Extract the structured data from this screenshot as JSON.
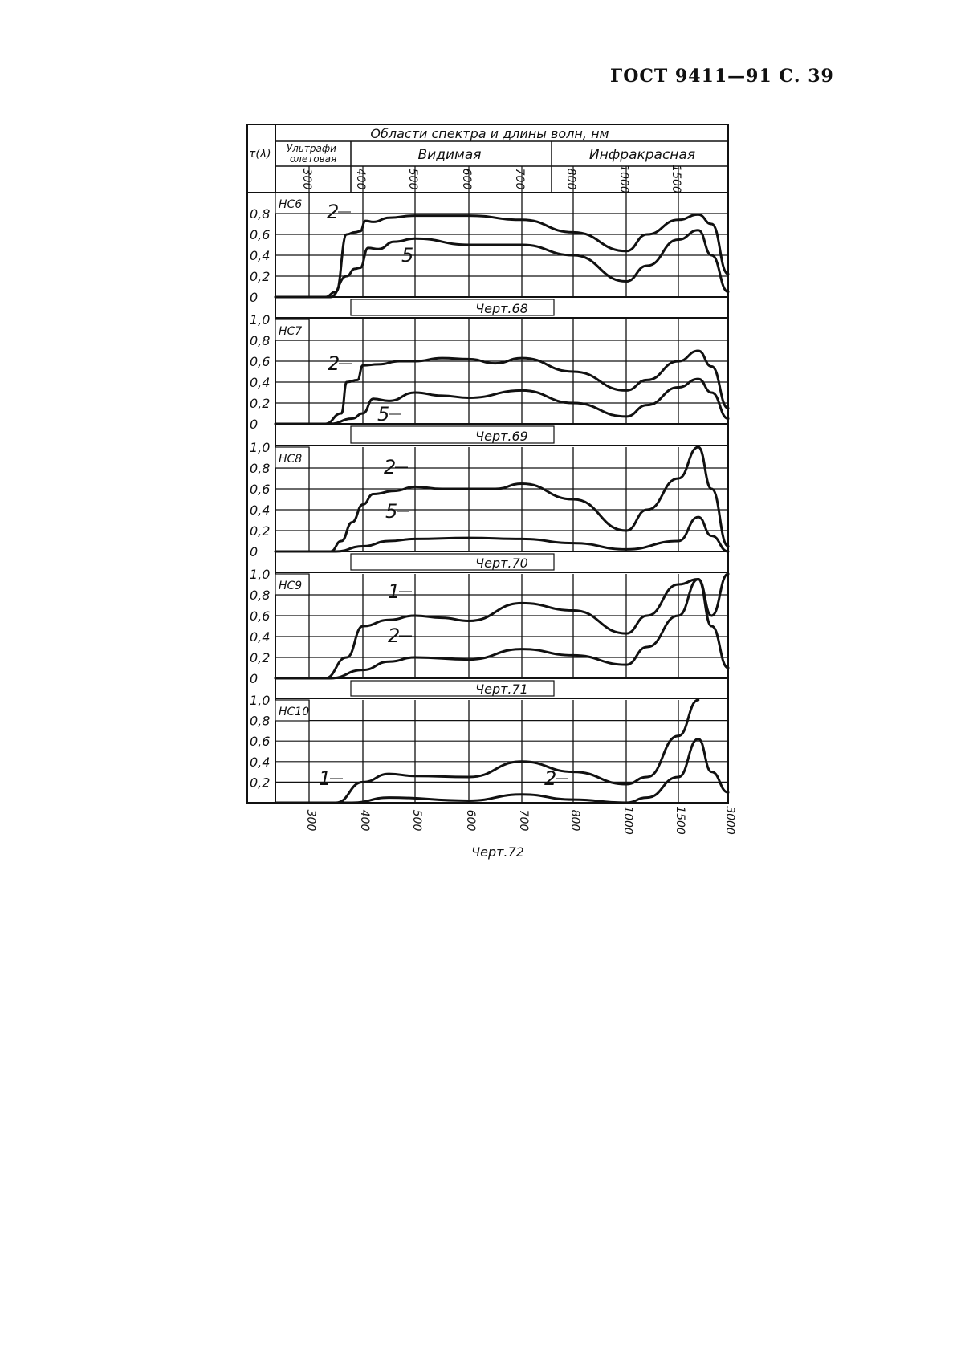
{
  "page_header": "ГОСТ 9411—91 С. 39",
  "colors": {
    "ink": "#111111",
    "paper": "#ffffff"
  },
  "chart_data": {
    "type": "line",
    "header": {
      "title": "Области спектра и длины волн, нм",
      "y_symbol": "τ(λ)",
      "regions": [
        "Ультрафио-летовая",
        "Видимая",
        "Инфракрасная"
      ],
      "region_uv_line1": "Ультрафи-",
      "region_uv_line2": "олетовая"
    },
    "x_ticks": [
      "300",
      "400",
      "500",
      "600",
      "700",
      "800",
      "1000",
      "1500",
      "3000"
    ],
    "x_scale": "non-uniform (equal spacing per tick)",
    "grid": true,
    "y_range": [
      0,
      1.0
    ],
    "panels": [
      {
        "glass": "НС6",
        "caption": "Черт.68",
        "y_ticks": [
          "0",
          "0,2",
          "0,4",
          "0,6",
          "0,8"
        ],
        "series": [
          {
            "name": "2",
            "points": [
              [
                330,
                0
              ],
              [
                350,
                0.05
              ],
              [
                370,
                0.6
              ],
              [
                385,
                0.62
              ],
              [
                395,
                0.63
              ],
              [
                405,
                0.73
              ],
              [
                420,
                0.72
              ],
              [
                450,
                0.76
              ],
              [
                500,
                0.78
              ],
              [
                600,
                0.78
              ],
              [
                700,
                0.74
              ],
              [
                800,
                0.62
              ],
              [
                1000,
                0.44
              ],
              [
                1200,
                0.6
              ],
              [
                1500,
                0.74
              ],
              [
                2100,
                0.79
              ],
              [
                2500,
                0.7
              ],
              [
                3000,
                0.22
              ]
            ]
          },
          {
            "name": "5",
            "points": [
              [
                340,
                0
              ],
              [
                370,
                0.2
              ],
              [
                385,
                0.27
              ],
              [
                395,
                0.28
              ],
              [
                410,
                0.47
              ],
              [
                430,
                0.46
              ],
              [
                460,
                0.53
              ],
              [
                500,
                0.56
              ],
              [
                600,
                0.5
              ],
              [
                700,
                0.5
              ],
              [
                800,
                0.4
              ],
              [
                1000,
                0.15
              ],
              [
                1200,
                0.3
              ],
              [
                1500,
                0.55
              ],
              [
                2100,
                0.64
              ],
              [
                2500,
                0.4
              ],
              [
                3000,
                0.05
              ]
            ]
          }
        ]
      },
      {
        "glass": "НС7",
        "caption": "Черт.69",
        "y_ticks": [
          "0",
          "0,2",
          "0,4",
          "0,6",
          "0,8",
          "1,0"
        ],
        "series": [
          {
            "name": "2",
            "points": [
              [
                330,
                0
              ],
              [
                360,
                0.1
              ],
              [
                370,
                0.4
              ],
              [
                390,
                0.42
              ],
              [
                400,
                0.56
              ],
              [
                430,
                0.57
              ],
              [
                470,
                0.6
              ],
              [
                500,
                0.6
              ],
              [
                550,
                0.63
              ],
              [
                600,
                0.62
              ],
              [
                650,
                0.58
              ],
              [
                700,
                0.63
              ],
              [
                800,
                0.5
              ],
              [
                1000,
                0.32
              ],
              [
                1200,
                0.42
              ],
              [
                1500,
                0.6
              ],
              [
                2100,
                0.7
              ],
              [
                2500,
                0.55
              ],
              [
                3000,
                0.15
              ]
            ]
          },
          {
            "name": "5",
            "points": [
              [
                340,
                0
              ],
              [
                380,
                0.05
              ],
              [
                400,
                0.1
              ],
              [
                420,
                0.24
              ],
              [
                450,
                0.22
              ],
              [
                500,
                0.3
              ],
              [
                550,
                0.27
              ],
              [
                600,
                0.25
              ],
              [
                700,
                0.32
              ],
              [
                800,
                0.2
              ],
              [
                1000,
                0.07
              ],
              [
                1200,
                0.18
              ],
              [
                1500,
                0.35
              ],
              [
                2100,
                0.43
              ],
              [
                2500,
                0.3
              ],
              [
                3000,
                0.05
              ]
            ]
          }
        ]
      },
      {
        "glass": "НС8",
        "caption": "Черт.70",
        "y_ticks": [
          "0",
          "0,2",
          "0,4",
          "0,6",
          "0,8",
          "1,0"
        ],
        "series": [
          {
            "name": "2",
            "points": [
              [
                340,
                0
              ],
              [
                360,
                0.1
              ],
              [
                380,
                0.28
              ],
              [
                400,
                0.45
              ],
              [
                420,
                0.55
              ],
              [
                460,
                0.58
              ],
              [
                500,
                0.62
              ],
              [
                550,
                0.6
              ],
              [
                650,
                0.6
              ],
              [
                700,
                0.65
              ],
              [
                800,
                0.5
              ],
              [
                1000,
                0.2
              ],
              [
                1200,
                0.4
              ],
              [
                1500,
                0.7
              ],
              [
                2100,
                1.0
              ],
              [
                2500,
                0.6
              ],
              [
                3000,
                0.05
              ]
            ]
          },
          {
            "name": "5",
            "points": [
              [
                350,
                0
              ],
              [
                400,
                0.05
              ],
              [
                450,
                0.1
              ],
              [
                500,
                0.12
              ],
              [
                600,
                0.13
              ],
              [
                700,
                0.12
              ],
              [
                800,
                0.08
              ],
              [
                1000,
                0.02
              ],
              [
                1500,
                0.1
              ],
              [
                2100,
                0.33
              ],
              [
                2500,
                0.15
              ],
              [
                3000,
                0
              ]
            ]
          }
        ]
      },
      {
        "glass": "НС9",
        "caption": "Черт.71",
        "y_ticks": [
          "0",
          "0,2",
          "0,4",
          "0,6",
          "0,8",
          "1,0"
        ],
        "series": [
          {
            "name": "1",
            "points": [
              [
                330,
                0
              ],
              [
                370,
                0.2
              ],
              [
                400,
                0.5
              ],
              [
                450,
                0.56
              ],
              [
                500,
                0.6
              ],
              [
                550,
                0.58
              ],
              [
                600,
                0.55
              ],
              [
                700,
                0.72
              ],
              [
                800,
                0.65
              ],
              [
                1000,
                0.43
              ],
              [
                1200,
                0.6
              ],
              [
                1500,
                0.9
              ],
              [
                2100,
                0.95
              ],
              [
                2500,
                0.6
              ],
              [
                3000,
                1.0
              ]
            ]
          },
          {
            "name": "2",
            "points": [
              [
                340,
                0
              ],
              [
                400,
                0.08
              ],
              [
                450,
                0.16
              ],
              [
                500,
                0.2
              ],
              [
                600,
                0.18
              ],
              [
                700,
                0.28
              ],
              [
                800,
                0.22
              ],
              [
                1000,
                0.13
              ],
              [
                1200,
                0.3
              ],
              [
                1500,
                0.6
              ],
              [
                2100,
                0.95
              ],
              [
                2500,
                0.5
              ],
              [
                3000,
                0.1
              ]
            ]
          }
        ]
      },
      {
        "glass": "НС10",
        "caption": "Черт.72",
        "y_ticks": [
          "0,2",
          "0,4",
          "0,6",
          "0,8",
          "1,0"
        ],
        "series": [
          {
            "name": "1",
            "points": [
              [
                350,
                0
              ],
              [
                400,
                0.2
              ],
              [
                450,
                0.28
              ],
              [
                500,
                0.26
              ],
              [
                600,
                0.25
              ],
              [
                700,
                0.4
              ],
              [
                800,
                0.3
              ],
              [
                1000,
                0.18
              ],
              [
                1200,
                0.25
              ],
              [
                1500,
                0.65
              ],
              [
                2100,
                1.0
              ]
            ]
          },
          {
            "name": "2",
            "points": [
              [
                380,
                0
              ],
              [
                450,
                0.05
              ],
              [
                600,
                0.02
              ],
              [
                700,
                0.08
              ],
              [
                800,
                0.03
              ],
              [
                1000,
                0
              ],
              [
                1200,
                0.05
              ],
              [
                1500,
                0.25
              ],
              [
                2100,
                0.62
              ],
              [
                2500,
                0.3
              ],
              [
                3000,
                0.1
              ]
            ]
          }
        ]
      }
    ]
  }
}
